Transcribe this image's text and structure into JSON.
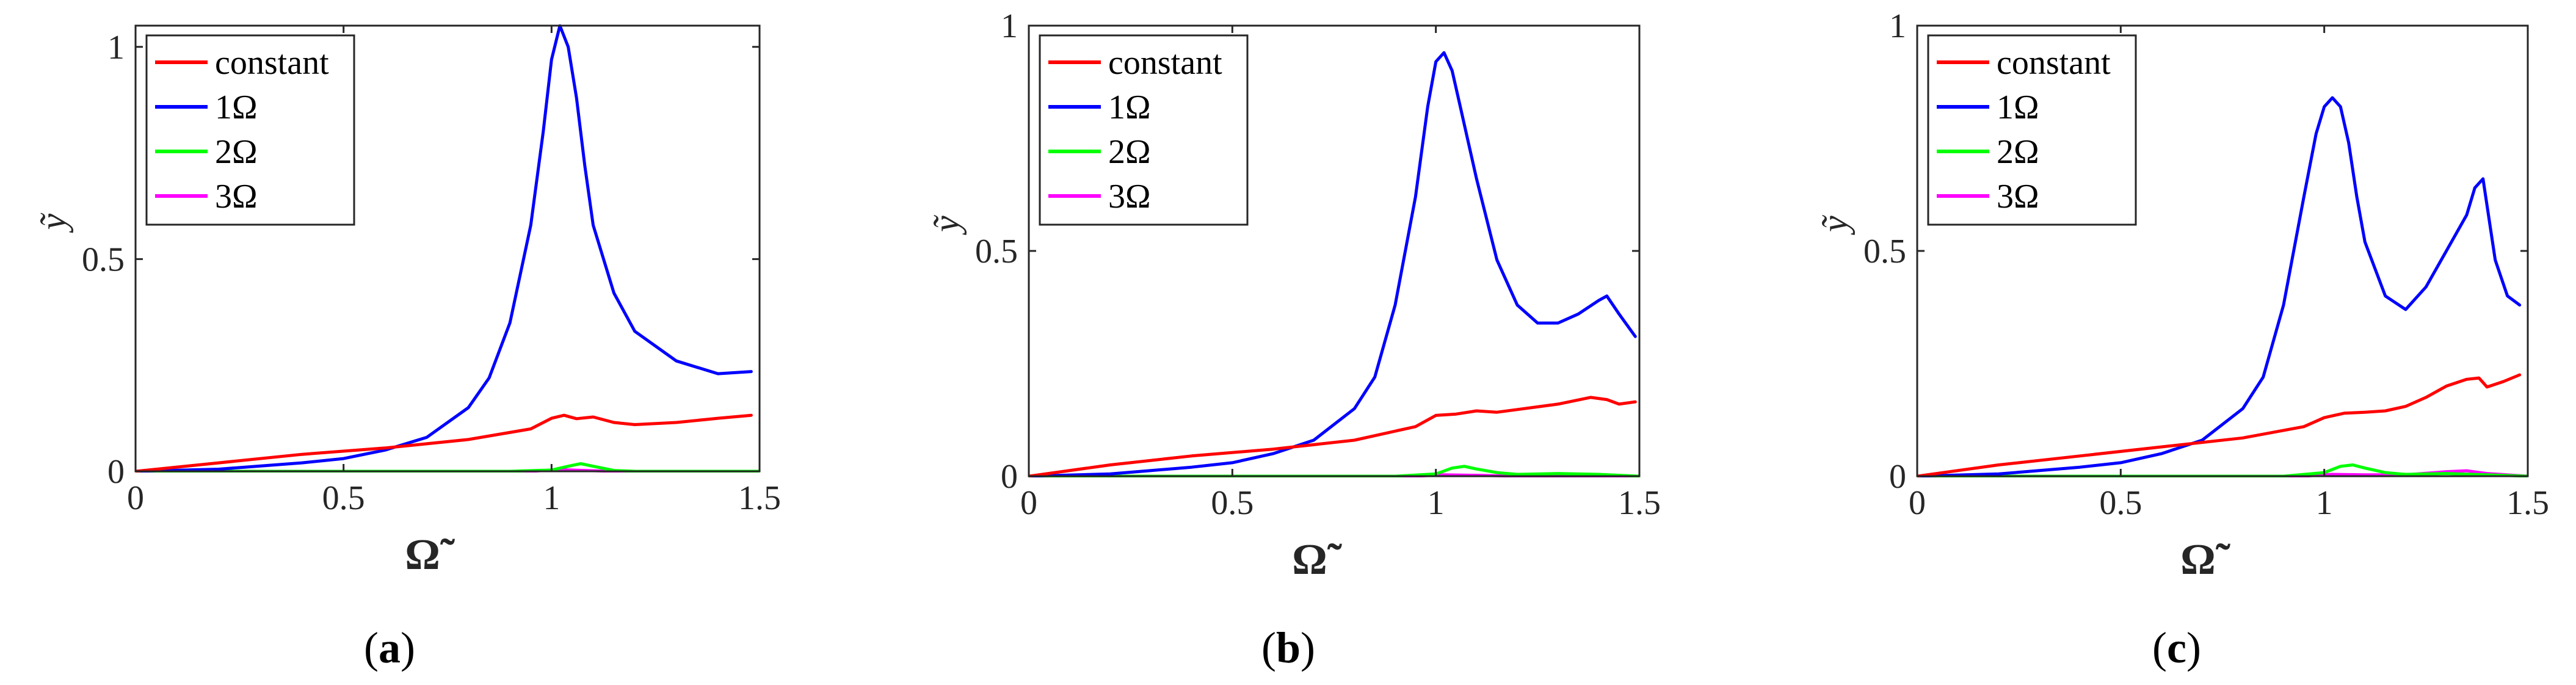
{
  "figure": {
    "panels": [
      {
        "id": "a",
        "label_open": "(",
        "label_letter": "a",
        "label_close": ")"
      },
      {
        "id": "b",
        "label_open": "(",
        "label_letter": "b",
        "label_close": ")"
      },
      {
        "id": "c",
        "label_open": "(",
        "label_letter": "c",
        "label_close": ")"
      }
    ]
  },
  "chart_data": [
    {
      "type": "line",
      "panel": "a",
      "xlabel": "Ω̃",
      "ylabel": "ỹ",
      "xlim": [
        0,
        1.5
      ],
      "ylim": [
        0,
        1.05
      ],
      "xticks": [
        0,
        0.5,
        1,
        1.5
      ],
      "xtick_labels": [
        "0",
        "0.5",
        "1",
        "1.5"
      ],
      "yticks": [
        0,
        0.5,
        1
      ],
      "ytick_labels": [
        "0",
        "0.5",
        "1"
      ],
      "legend_position": "top-left",
      "series": [
        {
          "name": "constant",
          "color": "#ff0000",
          "x": [
            0,
            0.2,
            0.4,
            0.6,
            0.8,
            0.95,
            1.0,
            1.03,
            1.06,
            1.1,
            1.15,
            1.2,
            1.3,
            1.4,
            1.48
          ],
          "y": [
            0,
            0.02,
            0.04,
            0.055,
            0.075,
            0.1,
            0.125,
            0.132,
            0.124,
            0.128,
            0.115,
            0.11,
            0.115,
            0.125,
            0.132
          ]
        },
        {
          "name": "1Ω",
          "color": "#0000ff",
          "x": [
            0,
            0.2,
            0.4,
            0.5,
            0.6,
            0.7,
            0.8,
            0.85,
            0.9,
            0.95,
            0.98,
            1.0,
            1.02,
            1.04,
            1.06,
            1.08,
            1.1,
            1.15,
            1.2,
            1.3,
            1.4,
            1.48
          ],
          "y": [
            0,
            0.005,
            0.02,
            0.03,
            0.05,
            0.08,
            0.15,
            0.22,
            0.35,
            0.58,
            0.8,
            0.97,
            1.05,
            1.0,
            0.88,
            0.72,
            0.58,
            0.42,
            0.33,
            0.26,
            0.23,
            0.235
          ]
        },
        {
          "name": "2Ω",
          "color": "#00ff00",
          "x": [
            0,
            0.9,
            1.0,
            1.04,
            1.07,
            1.1,
            1.15,
            1.2,
            1.5
          ],
          "y": [
            0,
            0,
            0.003,
            0.012,
            0.018,
            0.012,
            0.002,
            0,
            0
          ]
        },
        {
          "name": "3Ω",
          "color": "#ff00ff",
          "x": [
            0,
            0.95,
            1.02,
            1.08,
            1.15,
            1.5
          ],
          "y": [
            0,
            0,
            0.004,
            0.002,
            0,
            0
          ]
        }
      ]
    },
    {
      "type": "line",
      "panel": "b",
      "xlabel": "Ω̃",
      "ylabel": "ỹ",
      "xlim": [
        0,
        1.5
      ],
      "ylim": [
        0,
        1.0
      ],
      "xticks": [
        0,
        0.5,
        1,
        1.5
      ],
      "xtick_labels": [
        "0",
        "0.5",
        "1",
        "1.5"
      ],
      "yticks": [
        0,
        0.5,
        1
      ],
      "ytick_labels": [
        "0",
        "0.5",
        "1"
      ],
      "legend_position": "top-left",
      "series": [
        {
          "name": "constant",
          "color": "#ff0000",
          "x": [
            0,
            0.2,
            0.4,
            0.6,
            0.8,
            0.95,
            1.0,
            1.05,
            1.1,
            1.15,
            1.2,
            1.3,
            1.38,
            1.42,
            1.45,
            1.49
          ],
          "y": [
            0,
            0.025,
            0.045,
            0.06,
            0.08,
            0.11,
            0.135,
            0.138,
            0.145,
            0.142,
            0.148,
            0.16,
            0.175,
            0.17,
            0.16,
            0.165
          ]
        },
        {
          "name": "1Ω",
          "color": "#0000ff",
          "x": [
            0,
            0.2,
            0.4,
            0.5,
            0.6,
            0.7,
            0.8,
            0.85,
            0.9,
            0.95,
            0.98,
            1.0,
            1.02,
            1.04,
            1.06,
            1.08,
            1.1,
            1.15,
            1.2,
            1.25,
            1.3,
            1.35,
            1.4,
            1.42,
            1.45,
            1.49
          ],
          "y": [
            0,
            0.005,
            0.02,
            0.03,
            0.05,
            0.08,
            0.15,
            0.22,
            0.38,
            0.62,
            0.82,
            0.92,
            0.94,
            0.9,
            0.82,
            0.74,
            0.66,
            0.48,
            0.38,
            0.34,
            0.34,
            0.36,
            0.39,
            0.4,
            0.36,
            0.31
          ]
        },
        {
          "name": "2Ω",
          "color": "#00ff00",
          "x": [
            0,
            0.9,
            1.0,
            1.04,
            1.07,
            1.1,
            1.15,
            1.2,
            1.3,
            1.4,
            1.5
          ],
          "y": [
            0,
            0,
            0.005,
            0.018,
            0.022,
            0.016,
            0.008,
            0.004,
            0.006,
            0.004,
            0
          ]
        },
        {
          "name": "3Ω",
          "color": "#ff00ff",
          "x": [
            0,
            0.95,
            1.02,
            1.1,
            1.2,
            1.5
          ],
          "y": [
            0,
            0,
            0.003,
            0.002,
            0,
            0
          ]
        }
      ]
    },
    {
      "type": "line",
      "panel": "c",
      "xlabel": "Ω̃",
      "ylabel": "ỹ",
      "xlim": [
        0,
        1.5
      ],
      "ylim": [
        0,
        1.0
      ],
      "xticks": [
        0,
        0.5,
        1,
        1.5
      ],
      "xtick_labels": [
        "0",
        "0.5",
        "1",
        "1.5"
      ],
      "yticks": [
        0,
        0.5,
        1
      ],
      "ytick_labels": [
        "0",
        "0.5",
        "1"
      ],
      "legend_position": "top-left",
      "series": [
        {
          "name": "constant",
          "color": "#ff0000",
          "x": [
            0,
            0.2,
            0.4,
            0.6,
            0.8,
            0.95,
            1.0,
            1.05,
            1.1,
            1.15,
            1.2,
            1.25,
            1.3,
            1.35,
            1.38,
            1.4,
            1.44,
            1.48
          ],
          "y": [
            0,
            0.025,
            0.045,
            0.065,
            0.085,
            0.11,
            0.13,
            0.14,
            0.142,
            0.145,
            0.155,
            0.175,
            0.2,
            0.215,
            0.218,
            0.198,
            0.21,
            0.225
          ]
        },
        {
          "name": "1Ω",
          "color": "#0000ff",
          "x": [
            0,
            0.2,
            0.4,
            0.5,
            0.6,
            0.7,
            0.8,
            0.85,
            0.9,
            0.95,
            0.98,
            1.0,
            1.02,
            1.04,
            1.06,
            1.08,
            1.1,
            1.15,
            1.2,
            1.25,
            1.3,
            1.35,
            1.37,
            1.39,
            1.42,
            1.45,
            1.48
          ],
          "y": [
            0,
            0.005,
            0.02,
            0.03,
            0.05,
            0.08,
            0.15,
            0.22,
            0.38,
            0.62,
            0.76,
            0.82,
            0.84,
            0.82,
            0.74,
            0.62,
            0.52,
            0.4,
            0.37,
            0.42,
            0.5,
            0.58,
            0.64,
            0.66,
            0.48,
            0.4,
            0.38
          ]
        },
        {
          "name": "2Ω",
          "color": "#00ff00",
          "x": [
            0,
            0.9,
            1.0,
            1.04,
            1.07,
            1.1,
            1.15,
            1.2,
            1.3,
            1.4,
            1.5
          ],
          "y": [
            0,
            0,
            0.008,
            0.022,
            0.025,
            0.018,
            0.008,
            0.004,
            0.006,
            0.003,
            0
          ]
        },
        {
          "name": "3Ω",
          "color": "#ff00ff",
          "x": [
            0,
            0.95,
            1.02,
            1.1,
            1.2,
            1.3,
            1.35,
            1.4,
            1.5
          ],
          "y": [
            0,
            0,
            0.004,
            0.003,
            0.003,
            0.01,
            0.012,
            0.006,
            0
          ]
        }
      ]
    }
  ]
}
